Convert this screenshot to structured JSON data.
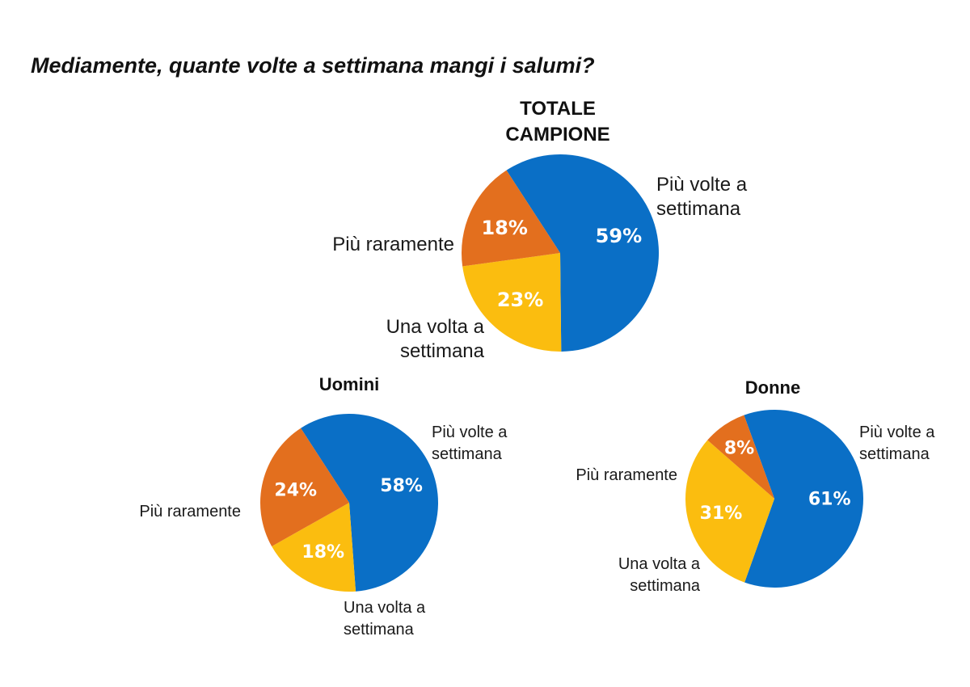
{
  "title": "Mediamente, quante volte a settimana mangi i salumi?",
  "colors": {
    "piu_volte": "#0a6fc6",
    "una_volta": "#fbbd0f",
    "piu_raramente": "#e36f1e"
  },
  "chart_data": [
    {
      "type": "pie",
      "title_lines": [
        "TOTALE",
        "CAMPIONE"
      ],
      "slices": [
        {
          "key": "piu_volte",
          "label_lines": [
            "Più volte a",
            "settimana"
          ],
          "value": 59,
          "value_label": "59%"
        },
        {
          "key": "una_volta",
          "label_lines": [
            "Una volta a",
            "settimana"
          ],
          "value": 23,
          "value_label": "23%"
        },
        {
          "key": "piu_raramente",
          "label_lines": [
            "Più raramente"
          ],
          "value": 18,
          "value_label": "18%"
        }
      ]
    },
    {
      "type": "pie",
      "title_lines": [
        "Uomini"
      ],
      "slices": [
        {
          "key": "piu_volte",
          "label_lines": [
            "Più volte a",
            "settimana"
          ],
          "value": 58,
          "value_label": "58%"
        },
        {
          "key": "una_volta",
          "label_lines": [
            "Una volta a",
            "settimana"
          ],
          "value": 18,
          "value_label": "18%"
        },
        {
          "key": "piu_raramente",
          "label_lines": [
            "Più raramente"
          ],
          "value": 24,
          "value_label": "24%"
        }
      ]
    },
    {
      "type": "pie",
      "title_lines": [
        "Donne"
      ],
      "slices": [
        {
          "key": "piu_volte",
          "label_lines": [
            "Più volte a",
            "settimana"
          ],
          "value": 61,
          "value_label": "61%"
        },
        {
          "key": "una_volta",
          "label_lines": [
            "Una volta a",
            "settimana"
          ],
          "value": 31,
          "value_label": "31%"
        },
        {
          "key": "piu_raramente",
          "label_lines": [
            "Più raramente"
          ],
          "value": 8,
          "value_label": "8%"
        }
      ]
    }
  ]
}
